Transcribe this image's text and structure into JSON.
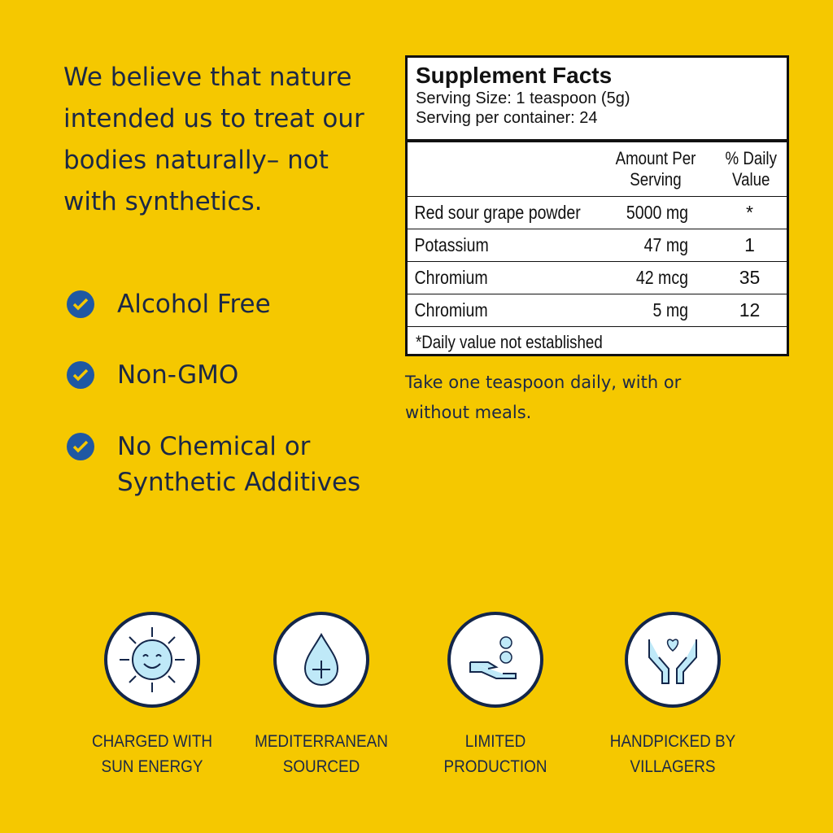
{
  "headline": "We believe that nature intended us to treat our bodies naturally– not with synthetics.",
  "features": [
    {
      "label": "Alcohol Free",
      "icon": "check-circle-icon"
    },
    {
      "label": "Non-GMO",
      "icon": "check-circle-icon"
    },
    {
      "label": "No Chemical or Synthetic Additives",
      "icon": "check-circle-icon"
    }
  ],
  "facts": {
    "title": "Supplement Facts",
    "serving_size": "Serving Size: 1 teaspoon (5g)",
    "servings": "Serving per container: 24",
    "headers": [
      "",
      "Amount Per Serving",
      "% Daily Value"
    ],
    "rows": [
      [
        "Red sour grape powder",
        "5000 mg",
        "*"
      ],
      [
        "Potassium",
        "47 mg",
        "1"
      ],
      [
        "Chromium",
        "42 mcg",
        "35"
      ],
      [
        "Chromium",
        "5 mg",
        "12"
      ]
    ],
    "footnote": "*Daily value not established"
  },
  "directions": "Take one teaspoon daily, with or without meals.",
  "badges": [
    {
      "label": "CHARGED WITH SUN ENERGY",
      "icon": "smiling-sun-icon"
    },
    {
      "label": "MEDITERRANEAN SOURCED",
      "icon": "water-drop-plus-icon"
    },
    {
      "label": "LIMITED PRODUCTION",
      "icon": "hand-with-seeds-icon"
    },
    {
      "label": "HANDPICKED BY VILLAGERS",
      "icon": "hands-heart-icon"
    }
  ],
  "colors": {
    "background": "#f5c800",
    "text": "#1b2846",
    "check": "#1f58a3",
    "icon_fill": "#bfe9f8"
  }
}
